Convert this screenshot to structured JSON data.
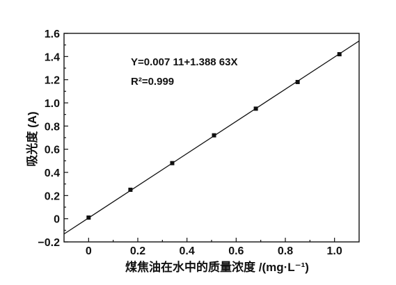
{
  "chart_data": {
    "type": "scatter",
    "xlabel": "煤焦油在水中的质量浓度 /(mg·L⁻¹)",
    "ylabel": "吸光度 (A)",
    "xlim": [
      -0.1,
      1.1
    ],
    "ylim": [
      -0.2,
      1.6
    ],
    "x_ticks": [
      0,
      0.2,
      0.4,
      0.6,
      0.8,
      1.0
    ],
    "x_tick_labels": [
      "0",
      "0.2",
      "0.4",
      "0.6",
      "0.8",
      "1.0"
    ],
    "y_ticks": [
      -0.2,
      0,
      0.2,
      0.4,
      0.6,
      0.8,
      1.0,
      1.2,
      1.4,
      1.6
    ],
    "y_tick_labels": [
      "−0.2",
      "0",
      "0.2",
      "0.4",
      "0.6",
      "0.8",
      "1.0",
      "1.2",
      "1.4",
      "1.6"
    ],
    "grid": false,
    "legend": "none",
    "series": [
      {
        "x": [
          0,
          0.17,
          0.34,
          0.51,
          0.68,
          0.85,
          1.02
        ],
        "y": [
          0.01,
          0.25,
          0.48,
          0.72,
          0.95,
          1.18,
          1.42
        ]
      }
    ],
    "fit_line": {
      "intercept": 0.00711,
      "slope": 1.38863
    },
    "annotations": [
      {
        "text": "Y=0.007 11+1.388 63X"
      },
      {
        "text": "R²=0.999"
      }
    ]
  }
}
